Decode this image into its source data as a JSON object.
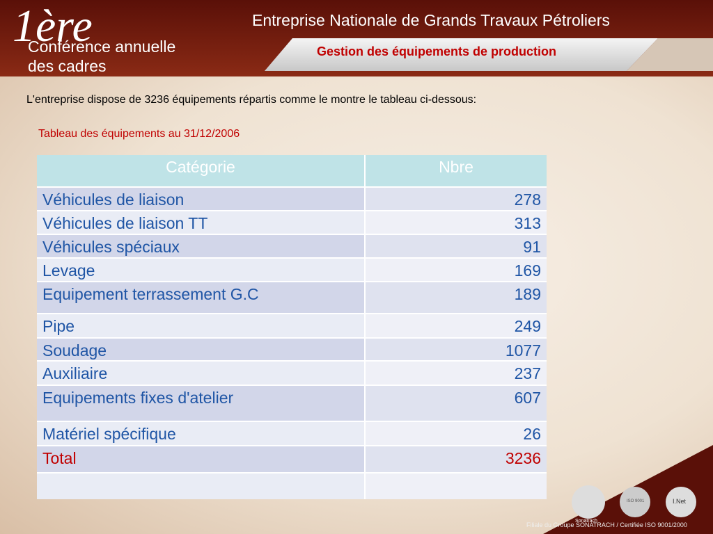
{
  "header": {
    "logo": "1ère",
    "conference_line1": "Conférence annuelle",
    "conference_line2": "des cadres",
    "company": "Entreprise Nationale de Grands Travaux Pétroliers",
    "subtitle": "Gestion des équipements de production"
  },
  "intro": "L'entreprise dispose de 3236 équipements  répartis comme le montre le tableau ci-dessous:",
  "table": {
    "caption": "Tableau des équipements au 31/12/2006",
    "columns": [
      "Catégorie",
      "Nbre"
    ],
    "rows": [
      [
        "Véhicules de liaison",
        "278"
      ],
      [
        "Véhicules de liaison TT",
        "313"
      ],
      [
        "Véhicules spéciaux",
        "91"
      ],
      [
        "Levage",
        "169"
      ],
      [
        "Equipement terrassement G.C",
        "189"
      ],
      [
        "Pipe",
        "249"
      ],
      [
        "Soudage",
        "1077"
      ],
      [
        "Auxiliaire",
        "237"
      ],
      [
        "Equipements fixes d'atelier",
        "607"
      ],
      [
        "Matériel spécifique",
        "26"
      ]
    ],
    "total": [
      "Total",
      "3236"
    ]
  },
  "footer": {
    "logo1": "Sonatrach",
    "logo2": "ISO 9001",
    "logo3": "I.Net",
    "text": "Filiale du Groupe SONATRACH / Certifiée ISO 9001/2000"
  }
}
